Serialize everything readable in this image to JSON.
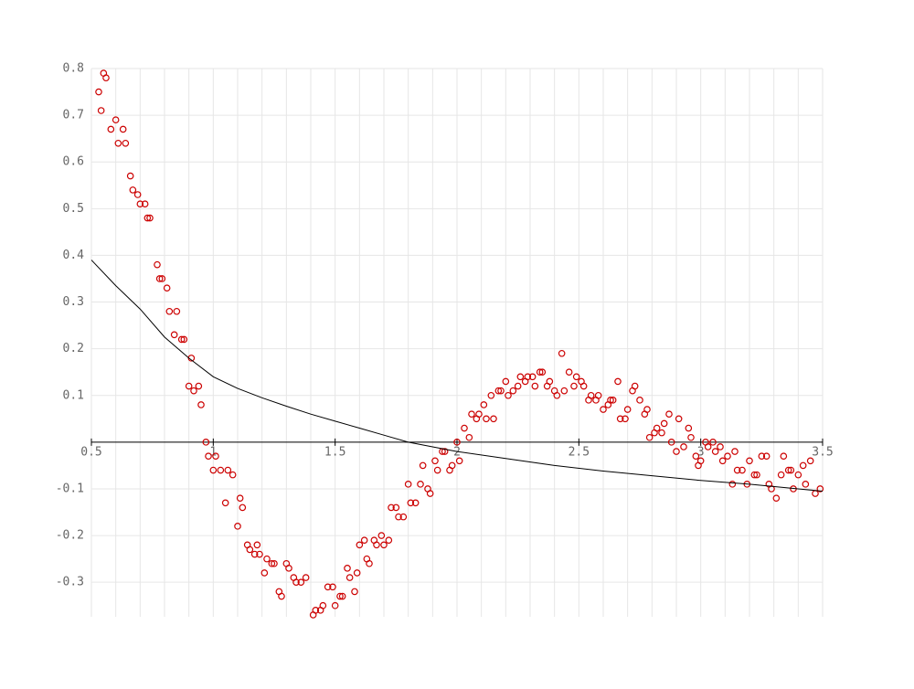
{
  "chart_data": {
    "type": "scatter",
    "xlim": [
      0.5,
      3.5
    ],
    "ylim": [
      -0.374,
      0.8
    ],
    "xticks": [
      0.5,
      1,
      1.5,
      2,
      2.5,
      3,
      3.5
    ],
    "yticks": [
      -0.3,
      -0.2,
      -0.1,
      0.1,
      0.2,
      0.3,
      0.4,
      0.5,
      0.6,
      0.7,
      0.8
    ],
    "xgrid": [
      0.5,
      0.6,
      0.7,
      0.8,
      0.9,
      1,
      1.1,
      1.2,
      1.3,
      1.4,
      1.5,
      1.6,
      1.7,
      1.8,
      1.9,
      2,
      2.1,
      2.2,
      2.3,
      2.4,
      2.5,
      2.6,
      2.7,
      2.8,
      2.9,
      3,
      3.1,
      3.2,
      3.3,
      3.4,
      3.5
    ],
    "ygrid": [
      -0.3,
      -0.2,
      -0.1,
      0,
      0.1,
      0.2,
      0.3,
      0.4,
      0.5,
      0.6,
      0.7,
      0.8
    ],
    "grid": true,
    "series": [
      {
        "style": "points",
        "color": "#cc0000",
        "x": [
          0.53,
          0.54,
          0.55,
          0.56,
          0.58,
          0.6,
          0.61,
          0.63,
          0.64,
          0.66,
          0.67,
          0.69,
          0.7,
          0.72,
          0.73,
          0.74,
          0.77,
          0.78,
          0.79,
          0.81,
          0.82,
          0.84,
          0.85,
          0.87,
          0.88,
          0.9,
          0.91,
          0.92,
          0.94,
          0.95,
          0.97,
          0.98,
          1.0,
          1.01,
          1.03,
          1.05,
          1.06,
          1.08,
          1.1,
          1.11,
          1.12,
          1.14,
          1.15,
          1.17,
          1.18,
          1.19,
          1.21,
          1.22,
          1.24,
          1.25,
          1.27,
          1.28,
          1.3,
          1.31,
          1.33,
          1.34,
          1.36,
          1.38,
          1.41,
          1.42,
          1.44,
          1.45,
          1.47,
          1.49,
          1.5,
          1.52,
          1.53,
          1.55,
          1.56,
          1.58,
          1.59,
          1.6,
          1.62,
          1.63,
          1.64,
          1.66,
          1.67,
          1.69,
          1.7,
          1.72,
          1.73,
          1.75,
          1.76,
          1.78,
          1.8,
          1.81,
          1.83,
          1.85,
          1.86,
          1.88,
          1.89,
          1.91,
          1.92,
          1.94,
          1.95,
          1.97,
          1.98,
          2.0,
          2.01,
          2.03,
          2.05,
          2.06,
          2.08,
          2.09,
          2.11,
          2.12,
          2.14,
          2.15,
          2.17,
          2.18,
          2.2,
          2.21,
          2.23,
          2.25,
          2.26,
          2.28,
          2.29,
          2.31,
          2.32,
          2.34,
          2.35,
          2.37,
          2.38,
          2.4,
          2.41,
          2.43,
          2.44,
          2.46,
          2.48,
          2.49,
          2.51,
          2.52,
          2.54,
          2.55,
          2.57,
          2.58,
          2.6,
          2.62,
          2.63,
          2.64,
          2.66,
          2.67,
          2.69,
          2.7,
          2.72,
          2.73,
          2.75,
          2.77,
          2.78,
          2.79,
          2.81,
          2.82,
          2.84,
          2.85,
          2.87,
          2.88,
          2.9,
          2.91,
          2.93,
          2.95,
          2.96,
          2.98,
          2.99,
          3.0,
          3.02,
          3.03,
          3.05,
          3.06,
          3.08,
          3.09,
          3.11,
          3.13,
          3.14,
          3.15,
          3.17,
          3.19,
          3.2,
          3.22,
          3.23,
          3.25,
          3.27,
          3.28,
          3.29,
          3.31,
          3.33,
          3.34,
          3.36,
          3.37,
          3.38,
          3.4,
          3.42,
          3.43,
          3.45,
          3.47,
          3.49
        ],
        "values": [
          0.75,
          0.71,
          0.79,
          0.78,
          0.67,
          0.69,
          0.64,
          0.67,
          0.64,
          0.57,
          0.54,
          0.53,
          0.51,
          0.51,
          0.48,
          0.48,
          0.38,
          0.35,
          0.35,
          0.33,
          0.28,
          0.23,
          0.28,
          0.22,
          0.22,
          0.12,
          0.18,
          0.11,
          0.12,
          0.08,
          0.0,
          -0.03,
          -0.06,
          -0.03,
          -0.06,
          -0.13,
          -0.06,
          -0.07,
          -0.18,
          -0.12,
          -0.14,
          -0.22,
          -0.23,
          -0.24,
          -0.22,
          -0.24,
          -0.28,
          -0.25,
          -0.26,
          -0.26,
          -0.32,
          -0.33,
          -0.26,
          -0.27,
          -0.29,
          -0.3,
          -0.3,
          -0.29,
          -0.37,
          -0.36,
          -0.36,
          -0.35,
          -0.31,
          -0.31,
          -0.35,
          -0.33,
          -0.33,
          -0.27,
          -0.29,
          -0.32,
          -0.28,
          -0.22,
          -0.21,
          -0.25,
          -0.26,
          -0.21,
          -0.22,
          -0.2,
          -0.22,
          -0.21,
          -0.14,
          -0.14,
          -0.16,
          -0.16,
          -0.09,
          -0.13,
          -0.13,
          -0.09,
          -0.05,
          -0.1,
          -0.11,
          -0.04,
          -0.06,
          -0.02,
          -0.02,
          -0.06,
          -0.05,
          0.0,
          -0.04,
          0.03,
          0.01,
          0.06,
          0.05,
          0.06,
          0.08,
          0.05,
          0.1,
          0.05,
          0.11,
          0.11,
          0.13,
          0.1,
          0.11,
          0.12,
          0.14,
          0.13,
          0.14,
          0.14,
          0.12,
          0.15,
          0.15,
          0.12,
          0.13,
          0.11,
          0.1,
          0.19,
          0.11,
          0.15,
          0.12,
          0.14,
          0.13,
          0.12,
          0.09,
          0.1,
          0.09,
          0.1,
          0.07,
          0.08,
          0.09,
          0.09,
          0.13,
          0.05,
          0.05,
          0.07,
          0.11,
          0.12,
          0.09,
          0.06,
          0.07,
          0.01,
          0.02,
          0.03,
          0.02,
          0.04,
          0.06,
          0.0,
          -0.02,
          0.05,
          -0.01,
          0.03,
          0.01,
          -0.03,
          -0.05,
          -0.04,
          0.0,
          -0.01,
          0.0,
          -0.02,
          -0.01,
          -0.04,
          -0.03,
          -0.09,
          -0.02,
          -0.06,
          -0.06,
          -0.09,
          -0.04,
          -0.07,
          -0.07,
          -0.03,
          -0.03,
          -0.09,
          -0.1,
          -0.12,
          -0.07,
          -0.03,
          -0.06,
          -0.06,
          -0.1,
          -0.07,
          -0.05,
          -0.09,
          -0.04,
          -0.11,
          -0.1
        ]
      },
      {
        "style": "line",
        "color": "#000000",
        "x": [
          0.5,
          0.6,
          0.7,
          0.8,
          0.9,
          1.0,
          1.1,
          1.2,
          1.3,
          1.4,
          1.5,
          1.6,
          1.7,
          1.8,
          1.9,
          2.0,
          2.2,
          2.4,
          2.6,
          2.8,
          3.0,
          3.2,
          3.4,
          3.5
        ],
        "values": [
          0.39,
          0.335,
          0.285,
          0.225,
          0.18,
          0.14,
          0.115,
          0.095,
          0.077,
          0.06,
          0.045,
          0.03,
          0.015,
          0.0,
          -0.01,
          -0.02,
          -0.035,
          -0.05,
          -0.062,
          -0.072,
          -0.082,
          -0.09,
          -0.1,
          -0.105
        ]
      }
    ]
  }
}
